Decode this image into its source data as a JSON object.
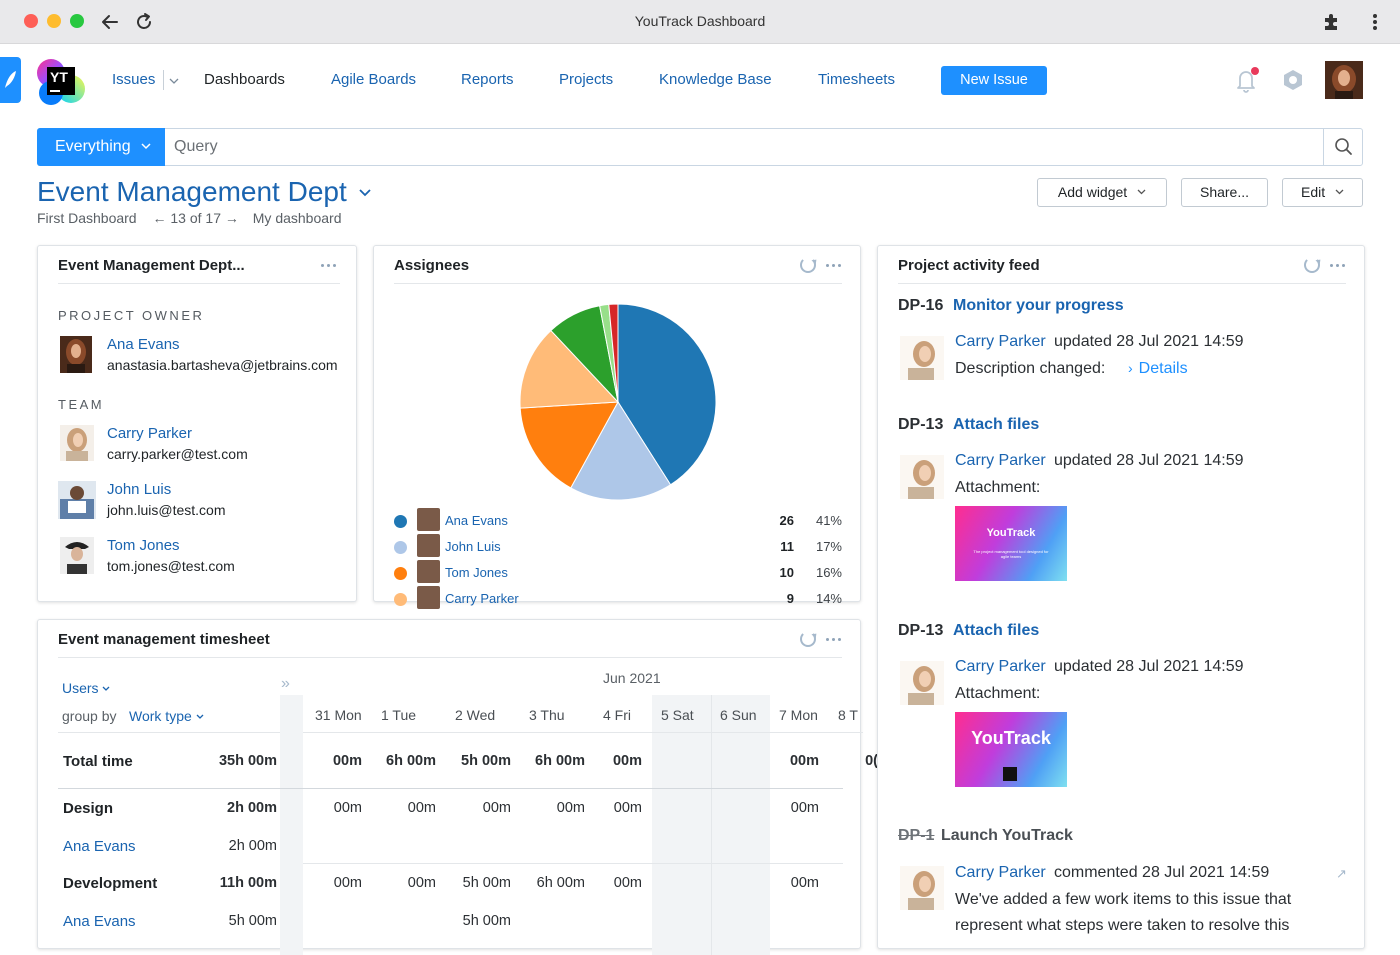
{
  "window": {
    "title": "YouTrack Dashboard"
  },
  "nav": {
    "logo_text": "YT",
    "items": [
      "Issues",
      "Dashboards",
      "Agile Boards",
      "Reports",
      "Projects",
      "Knowledge Base",
      "Timesheets"
    ],
    "new_issue": "New Issue"
  },
  "search": {
    "scope": "Everything",
    "placeholder": "Query"
  },
  "dashboard": {
    "title": "Event Management Dept",
    "breadcrumb_first": "First Dashboard",
    "breadcrumb_nav": "13 of 17",
    "breadcrumb_current": "My dashboard",
    "add_widget": "Add widget",
    "share": "Share...",
    "edit": "Edit"
  },
  "project_widget": {
    "title": "Event Management Dept...",
    "owner_label": "PROJECT OWNER",
    "owner": {
      "name": "Ana Evans",
      "email": "anastasia.bartasheva@jetbrains.com"
    },
    "team_label": "TEAM",
    "team": [
      {
        "name": "Carry Parker",
        "email": "carry.parker@test.com"
      },
      {
        "name": "John Luis",
        "email": "john.luis@test.com"
      },
      {
        "name": "Tom Jones",
        "email": "tom.jones@test.com"
      }
    ]
  },
  "assignees_widget": {
    "title": "Assignees",
    "rows": [
      {
        "name": "Ana Evans",
        "count": "26",
        "percent": "41%",
        "color": "#1f77b4"
      },
      {
        "name": "John Luis",
        "count": "11",
        "percent": "17%",
        "color": "#aec7e8"
      },
      {
        "name": "Tom Jones",
        "count": "10",
        "percent": "16%",
        "color": "#ff7f0e"
      },
      {
        "name": "Carry Parker",
        "count": "9",
        "percent": "14%",
        "color": "#ffbb78"
      }
    ],
    "pie_slices": [
      {
        "label": "Ana Evans",
        "value": 41,
        "color": "#1f77b4"
      },
      {
        "label": "John Luis",
        "value": 17,
        "color": "#aec7e8"
      },
      {
        "label": "Tom Jones",
        "value": 16,
        "color": "#ff7f0e"
      },
      {
        "label": "Carry Parker",
        "value": 14,
        "color": "#ffbb78"
      },
      {
        "value": 9,
        "color": "#2ca02c"
      },
      {
        "value": 1.5,
        "color": "#98df8a"
      },
      {
        "value": 1.5,
        "color": "#d62728"
      }
    ]
  },
  "timesheet": {
    "title": "Event management timesheet",
    "users_label": "Users",
    "group_by_label": "group by",
    "work_type_label": "Work type",
    "month": "Jun 2021",
    "days": [
      "31 Mon",
      "1 Tue",
      "2 Wed",
      "3 Thu",
      "4 Fri",
      "5 Sat",
      "6 Sun",
      "7 Mon",
      "8 T"
    ],
    "rows": [
      {
        "label": "Total time",
        "total": "35h 00m",
        "cells": [
          "00m",
          "6h 00m",
          "5h 00m",
          "6h 00m",
          "00m",
          "",
          "",
          "00m",
          "0("
        ]
      },
      {
        "label": "Design",
        "total": "2h 00m",
        "cells": [
          "00m",
          "00m",
          "00m",
          "00m",
          "00m",
          "",
          "",
          "00m",
          ""
        ]
      },
      {
        "label": "Ana Evans",
        "total": "2h 00m",
        "cells": [
          "",
          "",
          "",
          "",
          "",
          "",
          "",
          "",
          ""
        ]
      },
      {
        "label": "Development",
        "total": "11h 00m",
        "cells": [
          "00m",
          "00m",
          "5h 00m",
          "6h 00m",
          "00m",
          "",
          "",
          "00m",
          ""
        ]
      },
      {
        "label": "Ana Evans",
        "total": "5h 00m",
        "cells": [
          "",
          "",
          "5h 00m",
          "",
          "",
          "",
          "",
          "",
          ""
        ]
      }
    ]
  },
  "feed_widget": {
    "title": "Project activity feed",
    "entries": [
      {
        "id": "DP-16",
        "title": "Monitor your progress",
        "author": "Carry Parker",
        "action": "updated 28 Jul 2021 14:59",
        "detail": "Description changed:",
        "link": "Details"
      },
      {
        "id": "DP-13",
        "title": "Attach files",
        "author": "Carry Parker",
        "action": "updated 28 Jul 2021 14:59",
        "detail": "Attachment:",
        "thumb_text": "YouTrack",
        "thumb_sub": "The project management tool designed for agile teams"
      },
      {
        "id": "DP-13",
        "title": "Attach files",
        "author": "Carry Parker",
        "action": "updated 28 Jul 2021 14:59",
        "detail": "Attachment:",
        "thumb_text": "YouTrack"
      },
      {
        "id": "DP-1",
        "title": "Launch YouTrack",
        "author": "Carry Parker",
        "action": "commented 28 Jul 2021 14:59",
        "line1": "We've added a few work items to this issue that",
        "line2": "represent what steps were taken to resolve this"
      }
    ]
  }
}
